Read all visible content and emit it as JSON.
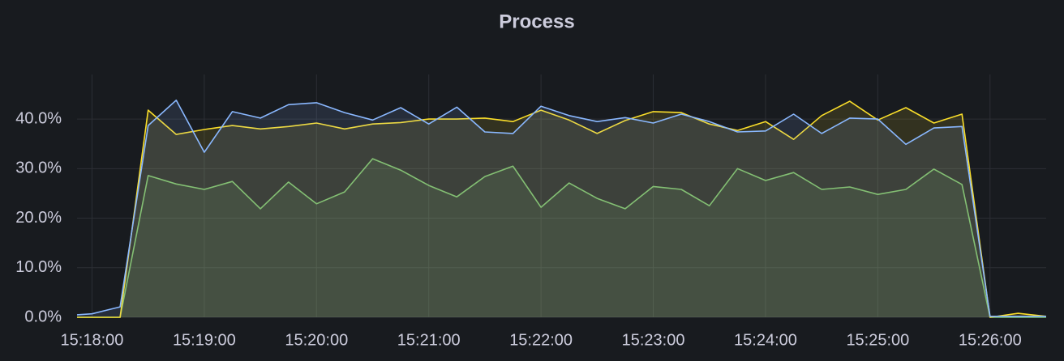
{
  "chart_data": {
    "type": "line",
    "title": "Process",
    "x": [
      "15:17:52",
      "15:18:00",
      "15:18:15",
      "15:18:30",
      "15:18:45",
      "15:19:00",
      "15:19:15",
      "15:19:30",
      "15:19:45",
      "15:20:00",
      "15:20:15",
      "15:20:30",
      "15:20:45",
      "15:21:00",
      "15:21:15",
      "15:21:30",
      "15:21:45",
      "15:22:00",
      "15:22:15",
      "15:22:30",
      "15:22:45",
      "15:23:00",
      "15:23:15",
      "15:23:30",
      "15:23:45",
      "15:24:00",
      "15:24:15",
      "15:24:30",
      "15:24:45",
      "15:25:00",
      "15:25:15",
      "15:25:30",
      "15:25:45",
      "15:26:00",
      "15:26:15",
      "15:26:30"
    ],
    "series": [
      {
        "color": "#73bf69",
        "values": [
          0,
          0,
          0,
          28.6,
          26.9,
          25.8,
          27.4,
          21.9,
          27.3,
          22.9,
          25.3,
          32.0,
          29.7,
          26.6,
          24.3,
          28.4,
          30.5,
          22.2,
          27.1,
          24.0,
          21.9,
          26.4,
          25.8,
          22.5,
          30.0,
          27.6,
          29.2,
          25.8,
          26.3,
          24.8,
          25.8,
          29.9,
          26.8,
          0,
          0,
          0
        ]
      },
      {
        "color": "#fade2a",
        "values": [
          0,
          0,
          0,
          41.8,
          36.9,
          37.9,
          38.7,
          38.0,
          38.5,
          39.2,
          38.0,
          39.0,
          39.3,
          40.0,
          40.0,
          40.2,
          39.5,
          41.8,
          39.8,
          37.1,
          39.7,
          41.5,
          41.3,
          39.0,
          37.7,
          39.5,
          35.9,
          40.7,
          43.6,
          39.8,
          42.3,
          39.2,
          41.0,
          0,
          0.8,
          0.2
        ]
      },
      {
        "color": "#8ab8ff",
        "values": [
          0.5,
          0.7,
          2.1,
          38.7,
          43.8,
          33.3,
          41.5,
          40.2,
          42.9,
          43.3,
          41.3,
          39.8,
          42.3,
          39.0,
          42.4,
          37.4,
          37.1,
          42.6,
          40.7,
          39.5,
          40.3,
          39.2,
          41.0,
          39.5,
          37.4,
          37.6,
          41.0,
          37.1,
          40.2,
          40.0,
          34.9,
          38.2,
          38.5,
          0.2,
          0.2,
          0.2
        ]
      }
    ],
    "xlim": [
      "15:17:52",
      "15:26:30"
    ],
    "xticks": [
      "15:18:00",
      "15:19:00",
      "15:20:00",
      "15:21:00",
      "15:22:00",
      "15:23:00",
      "15:24:00",
      "15:25:00",
      "15:26:00"
    ],
    "ylim": [
      0,
      49
    ],
    "yticks": [
      {
        "value": 0,
        "label": "0.0%"
      },
      {
        "value": 10,
        "label": "10.0%"
      },
      {
        "value": 20,
        "label": "20.0%"
      },
      {
        "value": 30,
        "label": "30.0%"
      },
      {
        "value": 40,
        "label": "40.0%"
      }
    ],
    "grid": true
  }
}
